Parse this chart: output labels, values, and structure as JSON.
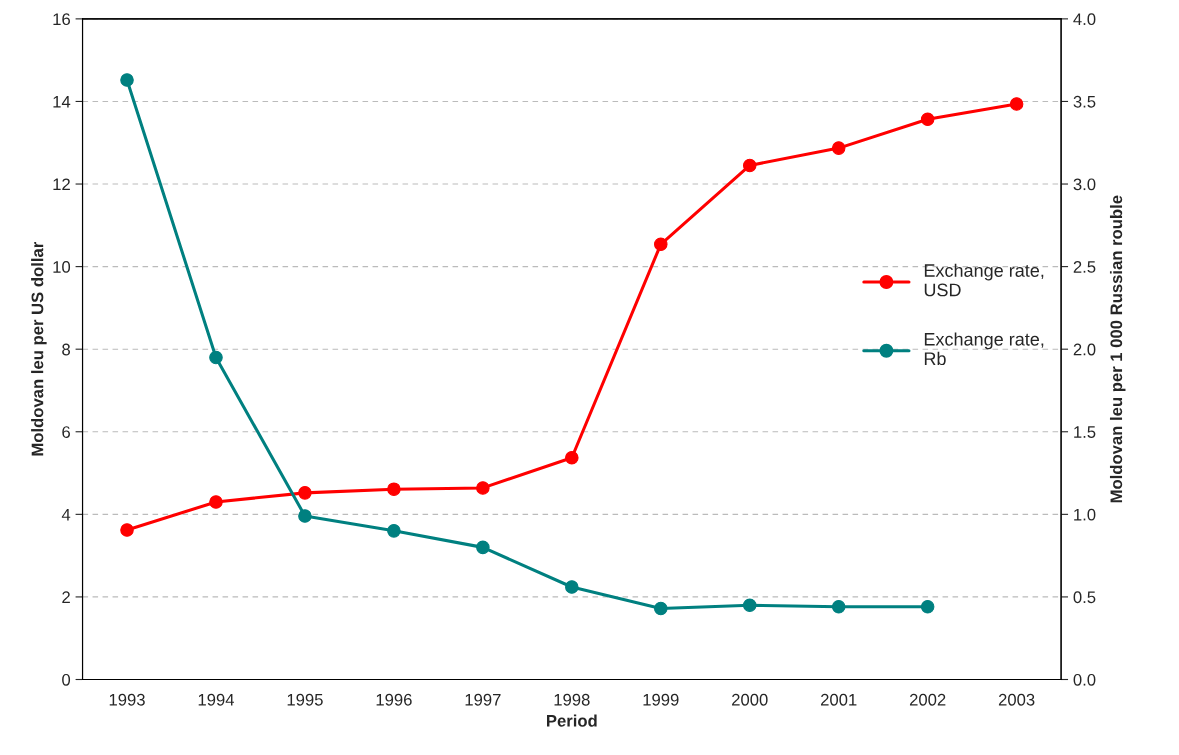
{
  "chart_data": {
    "type": "line",
    "xlabel": "Period",
    "ylabel": "Moldovan leu per US dollar",
    "y2label": "Moldovan leu per 1 000 Russian rouble",
    "categories": [
      "1993",
      "1994",
      "1995",
      "1996",
      "1997",
      "1998",
      "1999",
      "2000",
      "2001",
      "2002",
      "2003"
    ],
    "series": [
      {
        "name": "Exchange rate,\nUSD",
        "color": "#ff0000",
        "values": [
          3.62,
          4.3,
          4.52,
          4.61,
          4.64,
          5.37,
          10.54,
          12.45,
          12.87,
          13.57,
          13.94
        ]
      },
      {
        "name": "Exchange rate,\nRb",
        "color": "#008080",
        "axis": "y2",
        "values": [
          3.63,
          1.95,
          0.99,
          0.9,
          0.8,
          0.56,
          0.43,
          0.45,
          0.44,
          0.44,
          null
        ]
      }
    ],
    "ylim": [
      0,
      16
    ],
    "yticks": [
      0,
      2,
      4,
      6,
      8,
      10,
      12,
      14,
      16
    ],
    "y2lim": [
      0,
      4
    ],
    "y2ticks": [
      {
        "value": 0,
        "label": "0.0"
      },
      {
        "value": 0.5,
        "label": "0.5"
      },
      {
        "value": 1,
        "label": "1.0"
      },
      {
        "value": 1.5,
        "label": "1.5"
      },
      {
        "value": 2,
        "label": "2.0"
      },
      {
        "value": 2.5,
        "label": "2.5"
      },
      {
        "value": 3,
        "label": "3.0"
      },
      {
        "value": 3.5,
        "label": "3.5"
      },
      {
        "value": 4,
        "label": "4.0"
      }
    ],
    "grid": "y",
    "legend": "right",
    "marker": "circle",
    "line_style": "solid"
  }
}
